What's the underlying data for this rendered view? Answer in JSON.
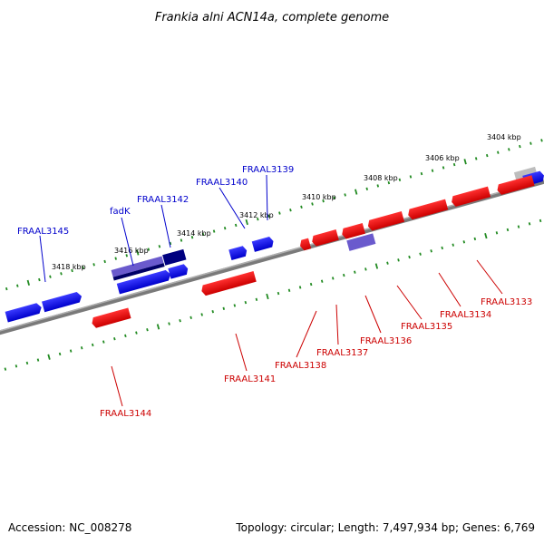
{
  "title": "Frankia alni ACN14a, complete genome",
  "footer": {
    "accession": "Accession: NC_008278",
    "summary": "Topology: circular; Length: 7,497,934 bp; Genes: 6,769"
  },
  "colors": {
    "forward_strand": "#0000ee",
    "reverse_strand": "#ee0000",
    "tick": "#228b22",
    "backbone": "#777777"
  },
  "scale_labels": [
    {
      "kbp": 3418,
      "text": "3418 kbp"
    },
    {
      "kbp": 3416,
      "text": "3416 kbp"
    },
    {
      "kbp": 3414,
      "text": "3414 kbp"
    },
    {
      "kbp": 3412,
      "text": "3412 kbp"
    },
    {
      "kbp": 3410,
      "text": "3410 kbp"
    },
    {
      "kbp": 3408,
      "text": "3408 kbp"
    },
    {
      "kbp": 3406,
      "text": "3406 kbp"
    },
    {
      "kbp": 3404,
      "text": "3404 kbp"
    }
  ],
  "gene_labels_forward": [
    {
      "text": "FRAAL3145"
    },
    {
      "text": "fadK"
    },
    {
      "text": "FRAAL3142"
    },
    {
      "text": "FRAAL3140"
    },
    {
      "text": "FRAAL3139"
    }
  ],
  "gene_labels_reverse": [
    {
      "text": "FRAAL3144"
    },
    {
      "text": "FRAAL3141"
    },
    {
      "text": "FRAAL3138"
    },
    {
      "text": "FRAAL3137"
    },
    {
      "text": "FRAAL3136"
    },
    {
      "text": "FRAAL3135"
    },
    {
      "text": "FRAAL3134"
    },
    {
      "text": "FRAAL3133"
    }
  ]
}
